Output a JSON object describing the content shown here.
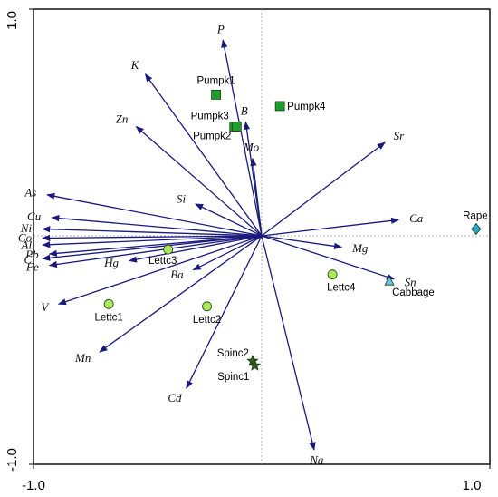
{
  "chart_data": {
    "type": "scatter",
    "subtype": "biplot",
    "title": "",
    "xlabel": "",
    "ylabel": "",
    "xlim": [
      -1.0,
      1.0
    ],
    "ylim": [
      -1.0,
      1.0
    ],
    "x_tick_labels": [
      "-1.0",
      "1.0"
    ],
    "y_tick_labels": [
      "1.0",
      "-1.0"
    ],
    "grid": false,
    "zero_lines": "dotted",
    "arrow_color": "#1a1a7e",
    "variables": [
      {
        "name": "P",
        "x": -0.17,
        "y": 0.86
      },
      {
        "name": "K",
        "x": -0.51,
        "y": 0.71
      },
      {
        "name": "Zn",
        "x": -0.55,
        "y": 0.48
      },
      {
        "name": "B",
        "x": -0.07,
        "y": 0.5
      },
      {
        "name": "Mo",
        "x": -0.04,
        "y": 0.34
      },
      {
        "name": "Sr",
        "x": 0.54,
        "y": 0.41
      },
      {
        "name": "Si",
        "x": -0.29,
        "y": 0.14
      },
      {
        "name": "As",
        "x": -0.94,
        "y": 0.18
      },
      {
        "name": "Cu",
        "x": -0.92,
        "y": 0.08
      },
      {
        "name": "Ni",
        "x": -0.96,
        "y": 0.03
      },
      {
        "name": "Co",
        "x": -0.96,
        "y": -0.01
      },
      {
        "name": "Al",
        "x": -0.96,
        "y": -0.04
      },
      {
        "name": "Pb",
        "x": -0.93,
        "y": -0.08
      },
      {
        "name": "C",
        "x": -0.96,
        "y": -0.1
      },
      {
        "name": "Fe",
        "x": -0.93,
        "y": -0.13
      },
      {
        "name": "V",
        "x": -0.89,
        "y": -0.3
      },
      {
        "name": "Hg",
        "x": -0.58,
        "y": -0.11
      },
      {
        "name": "Ba",
        "x": -0.3,
        "y": -0.15
      },
      {
        "name": "Mn",
        "x": -0.71,
        "y": -0.51
      },
      {
        "name": "Cd",
        "x": -0.33,
        "y": -0.67
      },
      {
        "name": "Na",
        "x": 0.23,
        "y": -0.94
      },
      {
        "name": "Ca",
        "x": 0.6,
        "y": 0.07
      },
      {
        "name": "Mg",
        "x": 0.35,
        "y": -0.05
      },
      {
        "name": "Sn",
        "x": 0.58,
        "y": -0.19
      }
    ],
    "samples": [
      {
        "name": "Pumpk1",
        "x": -0.2,
        "y": 0.62,
        "marker": "square",
        "color": "#1e9e2c"
      },
      {
        "name": "Pumpk3",
        "x": -0.12,
        "y": 0.48,
        "marker": "square",
        "color": "#1e9e2c"
      },
      {
        "name": "Pumpk2",
        "x": -0.11,
        "y": 0.48,
        "marker": "square",
        "color": "#1e9e2c"
      },
      {
        "name": "Pumpk4",
        "x": 0.08,
        "y": 0.57,
        "marker": "square",
        "color": "#1e9e2c"
      },
      {
        "name": "Rape",
        "x": 0.94,
        "y": 0.03,
        "marker": "diamond",
        "color": "#2aa6c9"
      },
      {
        "name": "Cabbage",
        "x": 0.56,
        "y": -0.2,
        "marker": "triangle",
        "color": "#6ec6e6"
      },
      {
        "name": "Lettc3",
        "x": -0.41,
        "y": -0.06,
        "marker": "circle",
        "color": "#a8e85a"
      },
      {
        "name": "Lettc4",
        "x": 0.31,
        "y": -0.17,
        "marker": "circle",
        "color": "#a8e85a"
      },
      {
        "name": "Lettc1",
        "x": -0.67,
        "y": -0.3,
        "marker": "circle",
        "color": "#a8e85a"
      },
      {
        "name": "Lettc2",
        "x": -0.24,
        "y": -0.31,
        "marker": "circle",
        "color": "#a8e85a"
      },
      {
        "name": "Spinc2",
        "x": -0.04,
        "y": -0.55,
        "marker": "star",
        "color": "#2e5d1e"
      },
      {
        "name": "Spinc1",
        "x": -0.03,
        "y": -0.57,
        "marker": "star",
        "color": "#2e5d1e"
      }
    ]
  }
}
